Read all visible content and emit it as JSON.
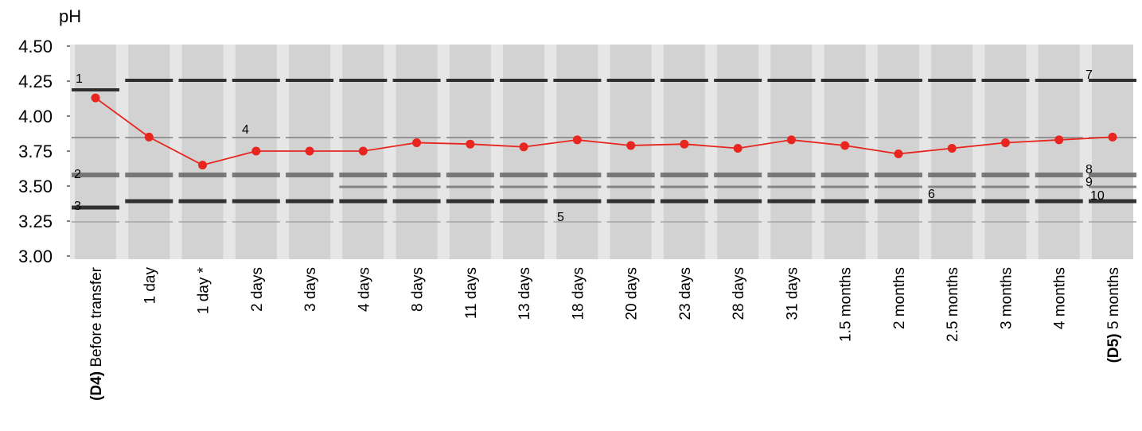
{
  "chart_data": {
    "type": "line",
    "y_axis_label": "pH",
    "categories": [
      "Before transfer",
      "1 day",
      "1 day *",
      "2 days",
      "3 days",
      "4 days",
      "8 days",
      "11 days",
      "13 days",
      "18 days",
      "20 days",
      "23 days",
      "28 days",
      "31 days",
      "1.5 months",
      "2 months",
      "2.5 months",
      "3 months",
      "4 months",
      "5 months"
    ],
    "lane_codes": [
      "(D4)",
      null,
      null,
      null,
      null,
      null,
      null,
      null,
      null,
      null,
      null,
      null,
      null,
      null,
      null,
      null,
      null,
      null,
      null,
      "(D5)"
    ],
    "series": [
      {
        "name": "pH",
        "color": "#e8251f",
        "values": [
          4.13,
          3.85,
          3.65,
          3.75,
          3.75,
          3.75,
          3.81,
          3.8,
          3.78,
          3.83,
          3.79,
          3.8,
          3.77,
          3.83,
          3.79,
          3.73,
          3.77,
          3.81,
          3.83,
          3.85
        ]
      }
    ],
    "ylim": [
      3.0,
      4.5
    ],
    "yticks": [
      {
        "value": 3.0,
        "label": "3.00"
      },
      {
        "value": 3.25,
        "label": "3.25"
      },
      {
        "value": 3.5,
        "label": "3.50"
      },
      {
        "value": 3.75,
        "label": "3.75"
      },
      {
        "value": 4.0,
        "label": "4.00"
      },
      {
        "value": 4.25,
        "label": "4.25"
      },
      {
        "value": 4.5,
        "label": "4.50"
      }
    ],
    "annotations": [
      "1",
      "2",
      "3",
      "4",
      "5",
      "6",
      "7",
      "8",
      "9",
      "10"
    ]
  }
}
